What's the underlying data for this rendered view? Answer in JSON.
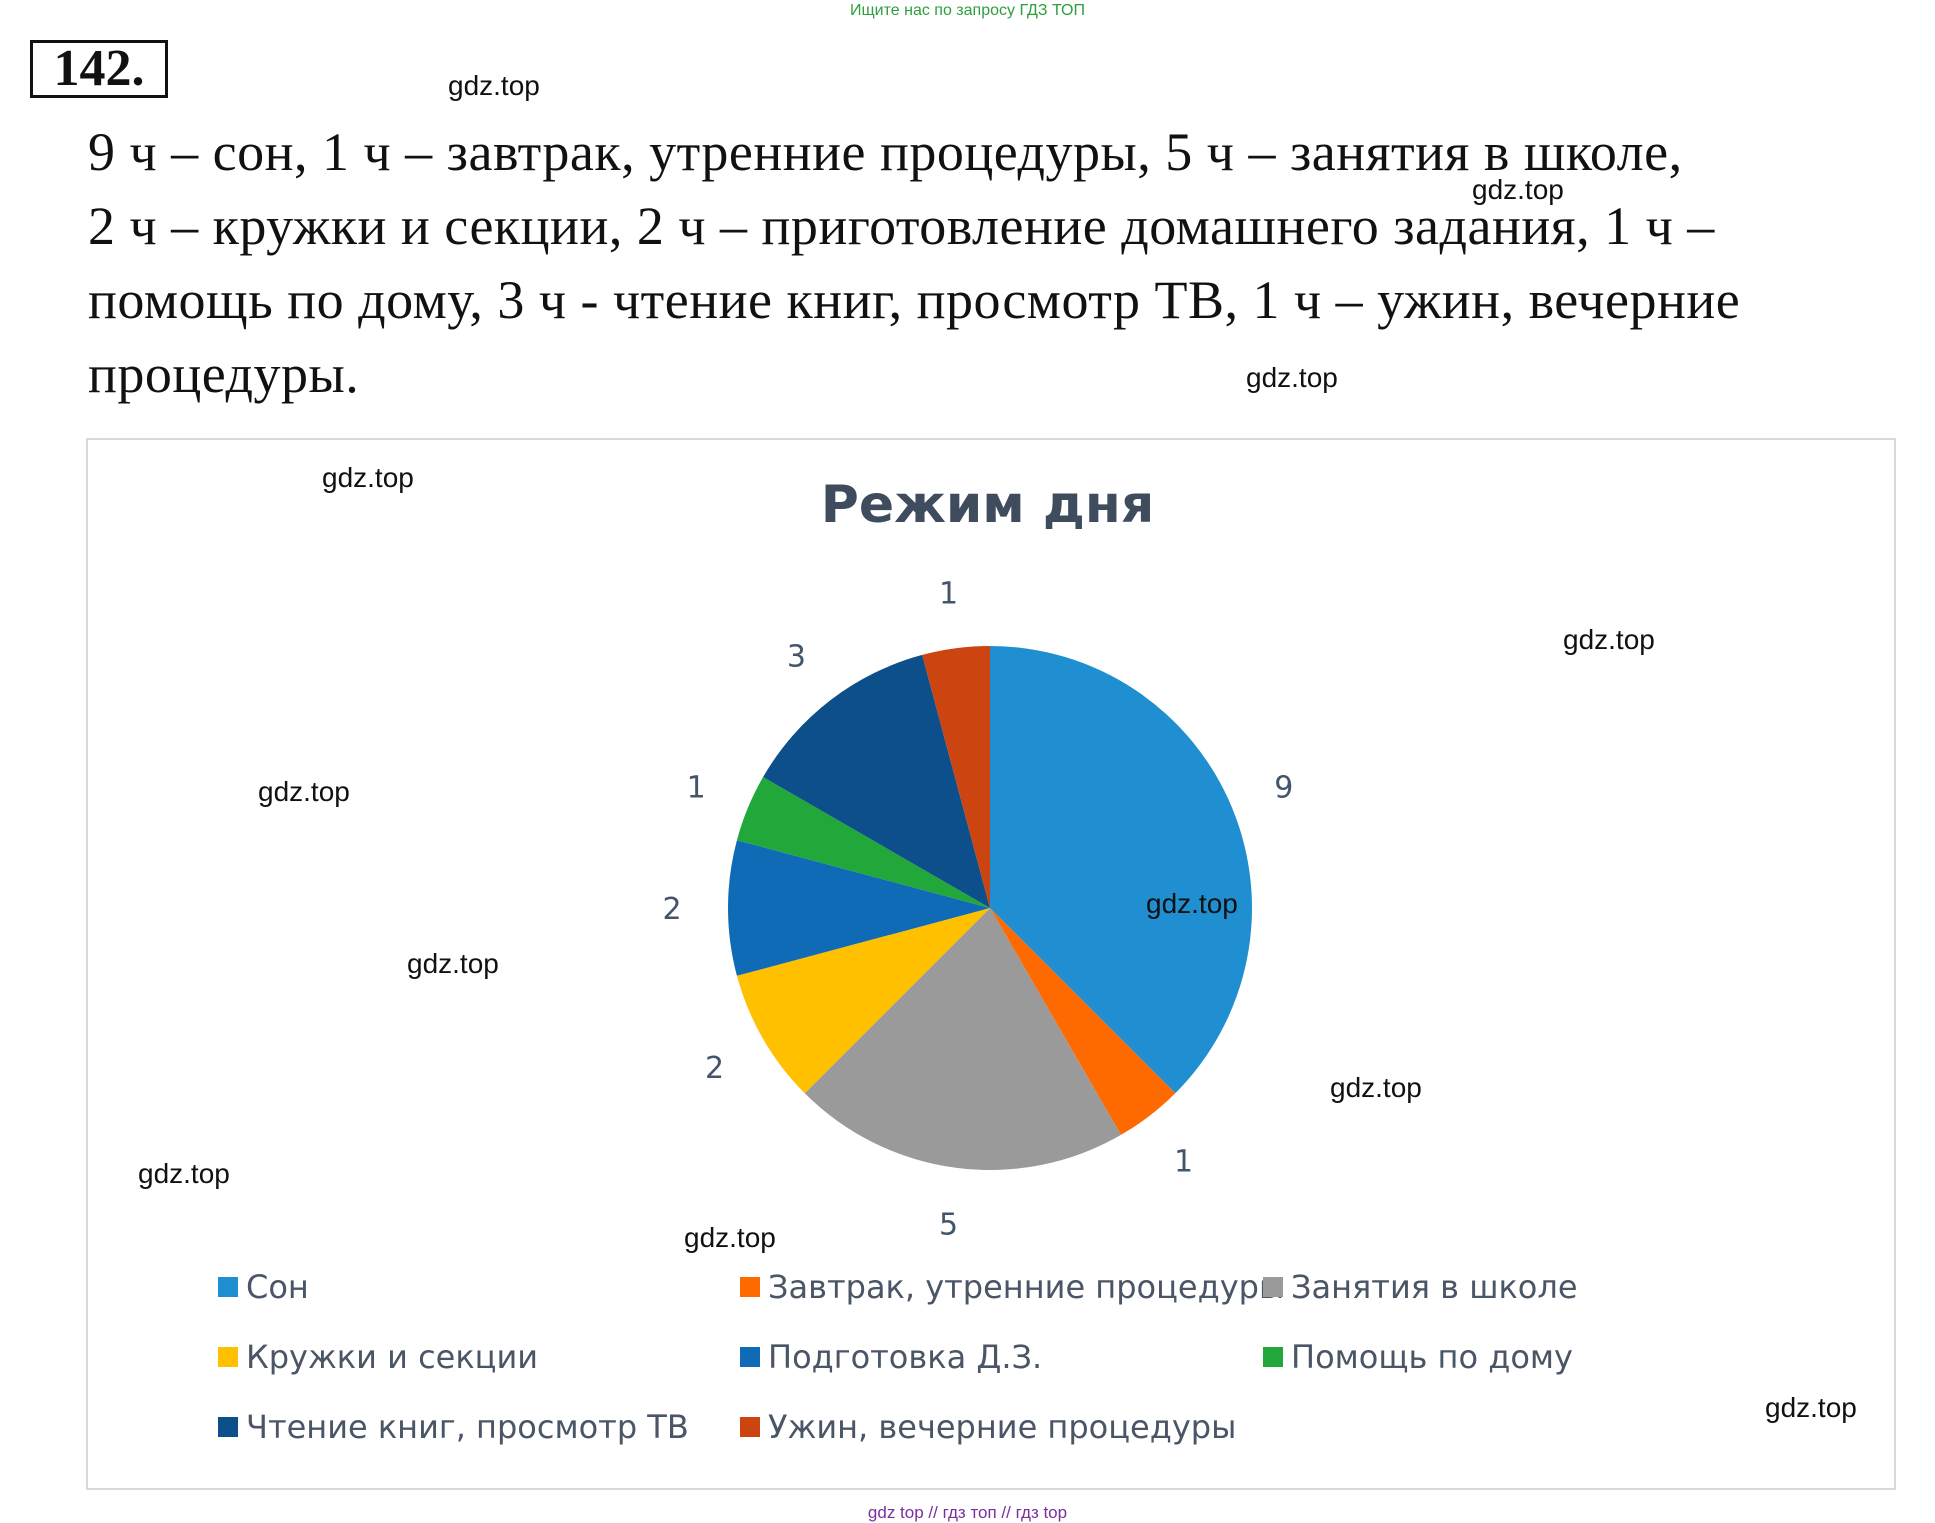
{
  "banner": "Ищите нас по запросу ГДЗ ТОП",
  "problem": {
    "number": "142.",
    "lines": [
      "9 ч – сон, 1 ч – завтрак, утренние процедуры, 5 ч – занятия в школе,",
      " 2 ч – кружки и секции, 2 ч – приготовление домашнего задания, 1 ч –",
      "помощь по дому, 3 ч - чтение книг, просмотр ТВ, 1 ч – ужин, вечерние",
      "процедуры."
    ]
  },
  "watermark": "gdz.top",
  "footer": "gdz top  //  гдз топ  //  гдз top",
  "chart_data": {
    "type": "pie",
    "title": "Режим дня",
    "categories": [
      "Сон",
      "Завтрак, утренние процедуры",
      "Занятия в школе",
      "Кружки и секции",
      "Подготовка Д.З.",
      "Помощь по дому",
      "Чтение книг, просмотр ТВ",
      "Ужин, вечерние процедуры"
    ],
    "values": [
      9,
      1,
      5,
      2,
      2,
      1,
      3,
      1
    ],
    "colors": [
      "#1f8fd1",
      "#ff6a00",
      "#9a9a9a",
      "#ffc000",
      "#0f6bb5",
      "#22a83a",
      "#0d4f8a",
      "#cc4410"
    ],
    "start_angle": "12 o'clock, clockwise",
    "data_labels": true,
    "legend_position": "bottom"
  }
}
